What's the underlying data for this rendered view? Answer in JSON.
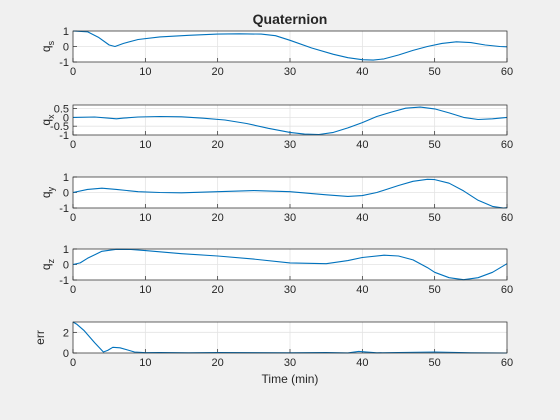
{
  "figure": {
    "title": "Quaternion",
    "background": "#f0f0f0",
    "line_color": "#0072bd",
    "axes_color": "#262626",
    "grid_color": "#e3e3e3"
  },
  "chart_data": [
    {
      "type": "line",
      "title": "Quaternion",
      "ylabel_main": "q",
      "ylabel_sub": "s",
      "xlabel": "",
      "xlim": [
        0,
        60
      ],
      "ylim": [
        -1,
        1
      ],
      "xticks": [
        "0",
        "10",
        "20",
        "30",
        "40",
        "50",
        "60"
      ],
      "yticks": [
        {
          "v": -1,
          "label": "-1"
        },
        {
          "v": 0,
          "label": "0"
        },
        {
          "v": 1,
          "label": "1"
        }
      ],
      "grid": true,
      "series": [
        {
          "x": [
            0,
            2,
            3.5,
            5,
            5.8,
            7,
            9,
            12,
            16,
            20,
            23,
            26,
            28,
            30,
            33,
            36,
            38,
            40,
            41.5,
            43,
            45,
            47,
            49,
            51,
            53,
            55,
            57,
            59,
            60
          ],
          "values": [
            1,
            0.95,
            0.6,
            0.1,
            0.0,
            0.2,
            0.45,
            0.62,
            0.72,
            0.8,
            0.82,
            0.8,
            0.7,
            0.4,
            -0.1,
            -0.5,
            -0.72,
            -0.85,
            -0.88,
            -0.8,
            -0.55,
            -0.25,
            0.0,
            0.2,
            0.3,
            0.25,
            0.1,
            0.0,
            -0.02
          ]
        }
      ]
    },
    {
      "type": "line",
      "ylabel_main": "q",
      "ylabel_sub": "x",
      "xlabel": "",
      "xlim": [
        0,
        60
      ],
      "ylim": [
        -1,
        0.7
      ],
      "xticks": [
        "0",
        "10",
        "20",
        "30",
        "40",
        "50",
        "60"
      ],
      "yticks": [
        {
          "v": -1,
          "label": "-1"
        },
        {
          "v": -0.5,
          "label": "-0.5"
        },
        {
          "v": 0,
          "label": "0"
        },
        {
          "v": 0.5,
          "label": "0.5"
        }
      ],
      "grid": true,
      "series": [
        {
          "x": [
            0,
            3,
            5,
            6,
            7,
            9,
            12,
            15,
            18,
            21,
            24,
            27,
            30,
            32,
            34,
            36,
            38,
            40,
            42,
            44,
            46,
            48,
            50,
            52,
            54,
            56,
            58,
            60
          ],
          "values": [
            0,
            0.02,
            -0.05,
            -0.08,
            -0.04,
            0.02,
            0.05,
            0.03,
            -0.05,
            -0.15,
            -0.35,
            -0.62,
            -0.85,
            -0.95,
            -0.97,
            -0.85,
            -0.6,
            -0.3,
            0.05,
            0.3,
            0.52,
            0.58,
            0.48,
            0.25,
            0.0,
            -0.12,
            -0.08,
            0.0
          ]
        }
      ]
    },
    {
      "type": "line",
      "ylabel_main": "q",
      "ylabel_sub": "y",
      "xlabel": "",
      "xlim": [
        0,
        60
      ],
      "ylim": [
        -1,
        1
      ],
      "xticks": [
        "0",
        "10",
        "20",
        "30",
        "40",
        "50",
        "60"
      ],
      "yticks": [
        {
          "v": -1,
          "label": "-1"
        },
        {
          "v": 0,
          "label": "0"
        },
        {
          "v": 1,
          "label": "1"
        }
      ],
      "grid": true,
      "series": [
        {
          "x": [
            0,
            2,
            4,
            6,
            9,
            12,
            15,
            20,
            25,
            30,
            35,
            38,
            40,
            42,
            45,
            47,
            49,
            50,
            52,
            54,
            56,
            58,
            59.5,
            60
          ],
          "values": [
            0,
            0.2,
            0.28,
            0.2,
            0.05,
            0.0,
            -0.02,
            0.05,
            0.12,
            0.05,
            -0.15,
            -0.25,
            -0.2,
            0.0,
            0.45,
            0.72,
            0.85,
            0.83,
            0.6,
            0.1,
            -0.5,
            -0.9,
            -1.0,
            -0.98
          ]
        }
      ]
    },
    {
      "type": "line",
      "ylabel_main": "q",
      "ylabel_sub": "z",
      "xlabel": "",
      "xlim": [
        0,
        60
      ],
      "ylim": [
        -1,
        1
      ],
      "xticks": [
        "0",
        "10",
        "20",
        "30",
        "40",
        "50",
        "60"
      ],
      "yticks": [
        {
          "v": -1,
          "label": "-1"
        },
        {
          "v": 0,
          "label": "0"
        },
        {
          "v": 1,
          "label": "1"
        }
      ],
      "grid": true,
      "series": [
        {
          "x": [
            0,
            1,
            2,
            4,
            6,
            8,
            10,
            15,
            20,
            25,
            30,
            35,
            38,
            40,
            43,
            45,
            47,
            49,
            50,
            52,
            54,
            56,
            58,
            60
          ],
          "values": [
            0,
            0.1,
            0.4,
            0.85,
            0.98,
            0.97,
            0.9,
            0.7,
            0.55,
            0.35,
            0.1,
            0.05,
            0.25,
            0.45,
            0.6,
            0.55,
            0.3,
            -0.2,
            -0.5,
            -0.85,
            -0.98,
            -0.85,
            -0.5,
            0.05
          ]
        }
      ]
    },
    {
      "type": "line",
      "ylabel_main": "err",
      "ylabel_sub": "",
      "xlabel": "Time (min)",
      "xlim": [
        0,
        60
      ],
      "ylim": [
        0,
        3
      ],
      "xticks": [
        "0",
        "10",
        "20",
        "30",
        "40",
        "50",
        "60"
      ],
      "yticks": [
        {
          "v": 0,
          "label": "0"
        },
        {
          "v": 2,
          "label": "2"
        }
      ],
      "grid": true,
      "series": [
        {
          "x": [
            0,
            0.5,
            1.5,
            3,
            4.2,
            4.8,
            5.5,
            6.5,
            7.5,
            8.5,
            10,
            12,
            16,
            20,
            25,
            30,
            35,
            38,
            39.5,
            42,
            45,
            50,
            55,
            60
          ],
          "values": [
            3.0,
            2.8,
            2.2,
            1.0,
            0.1,
            0.25,
            0.55,
            0.5,
            0.3,
            0.1,
            0.03,
            0.05,
            0.02,
            0.05,
            0.03,
            0.02,
            0.04,
            0.01,
            0.15,
            0.02,
            0.05,
            0.1,
            0.02,
            0.0
          ]
        }
      ]
    }
  ]
}
